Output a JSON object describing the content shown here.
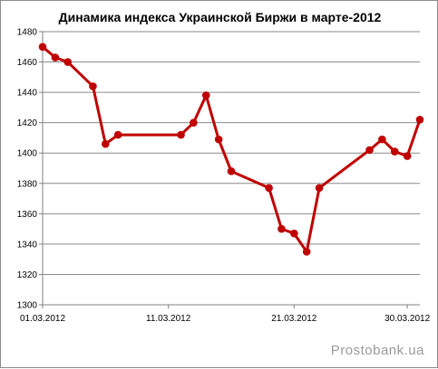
{
  "chart_data": {
    "type": "line",
    "title": "Динамика индекса Украинской Биржи в марте-2012",
    "xlabel": "",
    "ylabel": "",
    "ylim": [
      1300,
      1480
    ],
    "y_ticks": [
      1300,
      1320,
      1340,
      1360,
      1380,
      1400,
      1420,
      1440,
      1460,
      1480
    ],
    "x_ticks": [
      "01.03.2012",
      "11.03.2012",
      "21.03.2012",
      "30.03.2012"
    ],
    "xlim": [
      "01.03.2012",
      "31.03.2012"
    ],
    "grid": true,
    "legend": "none",
    "series": [
      {
        "color": "#c00000",
        "points": [
          {
            "x": "01.03.2012",
            "y": 1470
          },
          {
            "x": "02.03.2012",
            "y": 1463
          },
          {
            "x": "03.03.2012",
            "y": 1460
          },
          {
            "x": "05.03.2012",
            "y": 1444
          },
          {
            "x": "06.03.2012",
            "y": 1406
          },
          {
            "x": "07.03.2012",
            "y": 1412
          },
          {
            "x": "12.03.2012",
            "y": 1412
          },
          {
            "x": "13.03.2012",
            "y": 1420
          },
          {
            "x": "14.03.2012",
            "y": 1438
          },
          {
            "x": "15.03.2012",
            "y": 1409
          },
          {
            "x": "16.03.2012",
            "y": 1388
          },
          {
            "x": "19.03.2012",
            "y": 1377
          },
          {
            "x": "20.03.2012",
            "y": 1350
          },
          {
            "x": "21.03.2012",
            "y": 1347
          },
          {
            "x": "22.03.2012",
            "y": 1335
          },
          {
            "x": "23.03.2012",
            "y": 1377
          },
          {
            "x": "27.03.2012",
            "y": 1402
          },
          {
            "x": "28.03.2012",
            "y": 1409
          },
          {
            "x": "29.03.2012",
            "y": 1401
          },
          {
            "x": "30.03.2012",
            "y": 1398
          },
          {
            "x": "31.03.2012",
            "y": 1422
          }
        ]
      }
    ]
  },
  "watermark": "Prostobank.ua"
}
